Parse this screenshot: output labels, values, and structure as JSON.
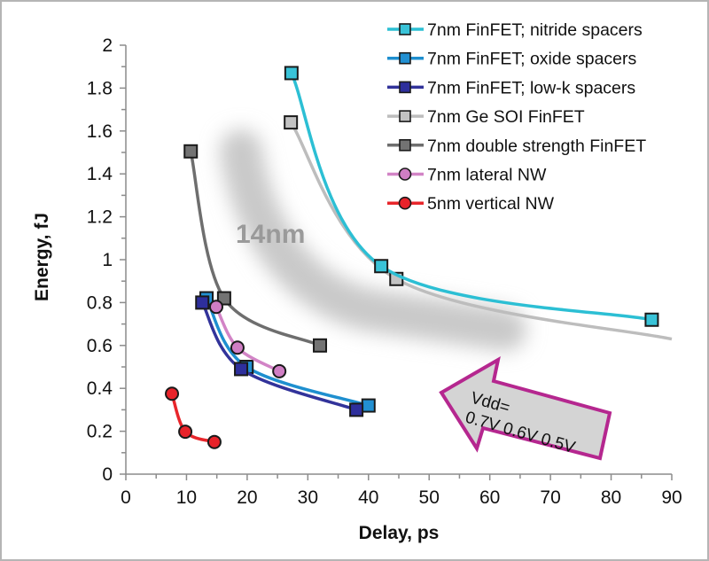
{
  "chart_data": {
    "type": "line",
    "title": "",
    "xlabel": "Delay, ps",
    "ylabel": "Energy, fJ",
    "xlim": [
      0,
      90
    ],
    "ylim": [
      0,
      2
    ],
    "x_ticks": [
      0,
      10,
      20,
      30,
      40,
      50,
      60,
      70,
      80,
      90
    ],
    "y_ticks": [
      0,
      0.2,
      0.4,
      0.6,
      0.8,
      1,
      1.2,
      1.4,
      1.6,
      1.8,
      2
    ],
    "x_tick_labels": [
      "0",
      "10",
      "20",
      "30",
      "40",
      "50",
      "60",
      "70",
      "80",
      "90"
    ],
    "y_tick_labels": [
      "0",
      "0.2",
      "0.4",
      "0.6",
      "0.8",
      "1",
      "1.2",
      "1.4",
      "1.6",
      "1.8",
      "2"
    ],
    "grid": false,
    "legend_position": "top-right",
    "series": [
      {
        "name": "7nm FinFET; nitride spacers",
        "color": "#2cbfd4",
        "marker": "square",
        "marker_fill": "#39c3d8",
        "x": [
          27.3,
          42.1,
          86.7
        ],
        "y": [
          1.87,
          0.97,
          0.72
        ]
      },
      {
        "name": "7nm FinFET; oxide spacers",
        "color": "#1e8fcf",
        "marker": "square",
        "marker_fill": "#2290d2",
        "x": [
          13.3,
          19.9,
          40.0
        ],
        "y": [
          0.82,
          0.5,
          0.32
        ]
      },
      {
        "name": "7nm FinFET; low-k spacers",
        "color": "#32339a",
        "marker": "square",
        "marker_fill": "#2e2f9c",
        "x": [
          12.6,
          19.0,
          38.0
        ],
        "y": [
          0.8,
          0.49,
          0.3
        ]
      },
      {
        "name": "7nm Ge SOI FinFET",
        "color": "#bdbdbd",
        "marker": "square",
        "marker_fill": "#c2c2c2",
        "x": [
          27.2,
          44.6,
          90.0
        ],
        "y": [
          1.64,
          0.91,
          0.63
        ]
      },
      {
        "name": "7nm double strength FinFET",
        "color": "#6e6e6e",
        "marker": "square",
        "marker_fill": "#737373",
        "x": [
          10.7,
          16.2,
          32.0
        ],
        "y": [
          1.505,
          0.82,
          0.6
        ]
      },
      {
        "name": "7nm lateral NW",
        "color": "#d284c6",
        "marker": "circle",
        "marker_fill": "#d07ec4",
        "x": [
          14.9,
          18.4,
          25.3
        ],
        "y": [
          0.78,
          0.59,
          0.48
        ]
      },
      {
        "name": "5nm vertical NW",
        "color": "#e8262b",
        "marker": "circle",
        "marker_fill": "#e8232a",
        "x": [
          7.6,
          9.8,
          14.6
        ],
        "y": [
          0.375,
          0.198,
          0.15
        ]
      }
    ],
    "annotations": [
      {
        "text": "14nm",
        "type": "shaded-band",
        "color": "#9a9a9a"
      },
      {
        "text_lines": [
          "Vdd=",
          "0.7V 0.6V 0.5V"
        ],
        "type": "arrow",
        "direction": "left",
        "fill": "#d4d4d4",
        "border": "#b5278f"
      }
    ]
  }
}
